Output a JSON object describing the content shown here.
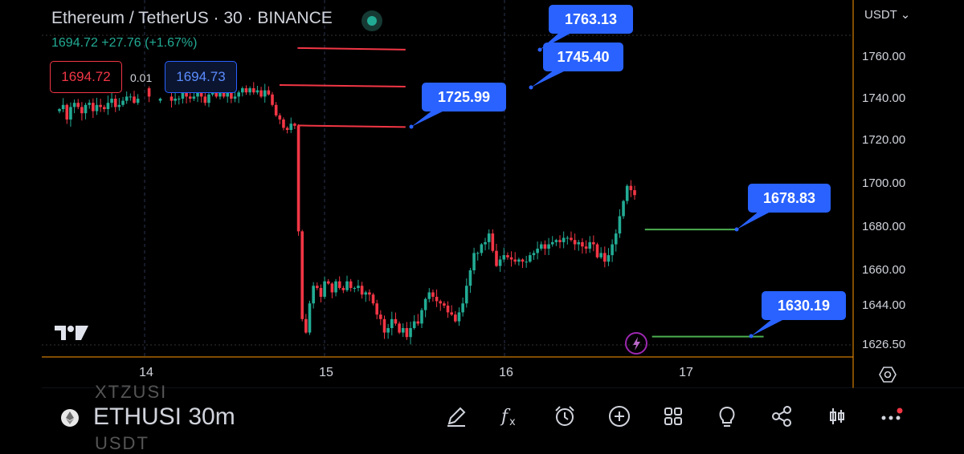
{
  "header": {
    "title": "Ethereum / TetherUS · 30 · BINANCE",
    "last_change": "1694.72 +27.76 (+1.67%)",
    "sell_price": "1694.72",
    "spread": "0.01",
    "buy_price": "1694.73",
    "status_color": "#22ab94"
  },
  "currency": "USDT",
  "colors": {
    "up": "#22ab94",
    "down": "#f23645",
    "accent": "#2962ff",
    "target_line": "#4caf50"
  },
  "chart_data": {
    "type": "candlestick",
    "x_ticks": [
      "14",
      "15",
      "16",
      "17"
    ],
    "y_ticks": [
      1626.5,
      1644.0,
      1660.0,
      1680.0,
      1700.0,
      1720.0,
      1740.0,
      1760.0
    ],
    "y_tick_labels": [
      "1626.50",
      "1644.00",
      "1660.00",
      "1680.00",
      "1700.00",
      "1720.00",
      "1740.00",
      "1760.00"
    ],
    "ylim": [
      1620,
      1780
    ],
    "current_price": 1694.72,
    "price_labels": [
      {
        "value": "1763.13"
      },
      {
        "value": "1745.40"
      },
      {
        "value": "1725.99"
      },
      {
        "value": "1678.83"
      },
      {
        "value": "1630.19"
      }
    ],
    "segments": [
      {
        "color": "red",
        "from_day": 14.85,
        "to_day": 15.45,
        "price": 1763.13
      },
      {
        "color": "red",
        "from_day": 14.75,
        "to_day": 15.45,
        "price": 1745.4
      },
      {
        "color": "red",
        "from_day": 14.85,
        "to_day": 15.45,
        "price": 1725.99
      },
      {
        "color": "green",
        "from_day": 16.78,
        "to_day": 17.3,
        "price": 1678.83
      },
      {
        "color": "green",
        "from_day": 16.82,
        "to_day": 17.44,
        "price": 1630.19
      }
    ],
    "closes": [
      1735,
      1737,
      1730,
      1736,
      1738,
      1736,
      1733,
      1737,
      1738,
      1734,
      1737,
      1736,
      1735,
      1738,
      1740,
      1736,
      1737,
      1739,
      1741,
      1741,
      1738,
      1740,
      1741,
      1745,
      1741,
      1740,
      1739,
      1740,
      1740,
      1741,
      1739,
      1740,
      1740,
      1745,
      1741,
      1740,
      1741,
      1743,
      1741,
      1738,
      1742,
      1743,
      1741,
      1743,
      1741,
      1743,
      1740,
      1741,
      1743,
      1745,
      1743,
      1745,
      1743,
      1744,
      1741,
      1744,
      1742,
      1737,
      1732,
      1730,
      1726,
      1725,
      1728,
      1727,
      1678,
      1638,
      1632,
      1645,
      1653,
      1652,
      1648,
      1655,
      1654,
      1650,
      1655,
      1652,
      1651,
      1655,
      1652,
      1652,
      1653,
      1649,
      1650,
      1649,
      1645,
      1640,
      1638,
      1632,
      1634,
      1638,
      1636,
      1632,
      1634,
      1630,
      1634,
      1637,
      1636,
      1642,
      1647,
      1650,
      1648,
      1646,
      1645,
      1644,
      1641,
      1640,
      1637,
      1641,
      1645,
      1653,
      1660,
      1668,
      1668,
      1672,
      1673,
      1677,
      1669,
      1662,
      1665,
      1667,
      1666,
      1665,
      1664,
      1665,
      1664,
      1664,
      1667,
      1668,
      1670,
      1672,
      1670,
      1672,
      1673,
      1674,
      1673,
      1675,
      1675,
      1674,
      1672,
      1673,
      1671,
      1670,
      1673,
      1672,
      1666,
      1668,
      1664,
      1667,
      1672,
      1677,
      1685,
      1692,
      1699,
      1697,
      1694.72
    ],
    "annotations": [
      "17"
    ]
  },
  "bottom_bar": {
    "symbol": "ETHUSI 30m",
    "ghost_top": "XTZUSI",
    "ghost_bottom": "USDT",
    "tools": [
      "pen-icon",
      "function-icon",
      "alarm-clock-icon",
      "plus-circle-icon",
      "grid-icon",
      "lightbulb-icon",
      "share-icon",
      "candles-icon",
      "more-icon"
    ]
  }
}
